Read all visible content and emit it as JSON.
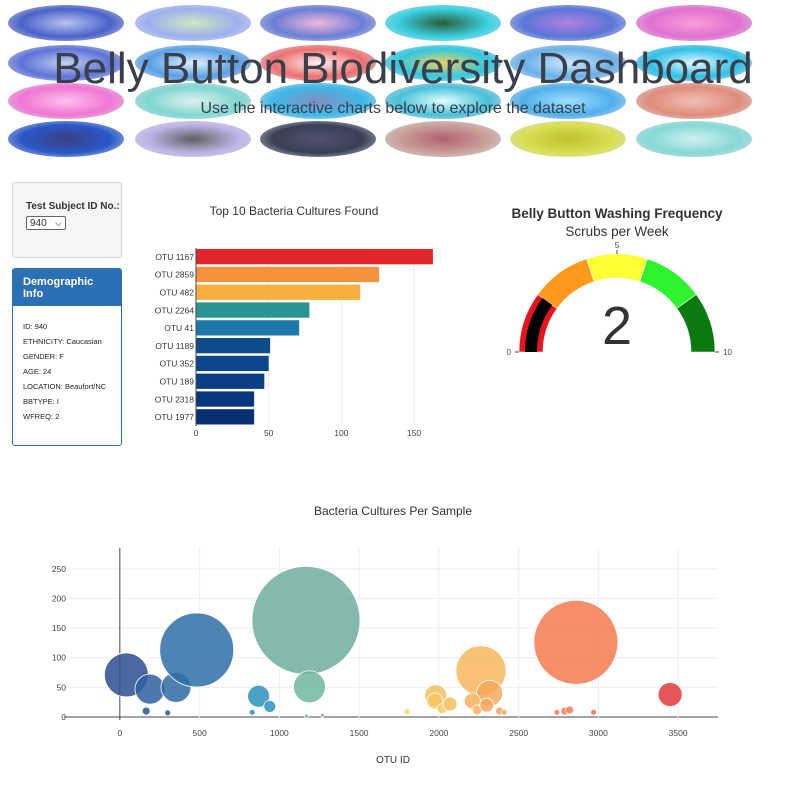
{
  "header": {
    "title": "Belly Button Biodiversity Dashboard",
    "subtitle": "Use the interactive charts below to explore the dataset"
  },
  "selector": {
    "label": "Test Subject ID No.:",
    "selected": "940"
  },
  "demographic": {
    "title": "Demographic Info",
    "rows": [
      "ID: 940",
      "ETHNICITY: Caucasian",
      "GENDER: F",
      "AGE: 24",
      "LOCATION: Beaufort/NC",
      "BBTYPE: I",
      "WFREQ: 2"
    ]
  },
  "chart_data": [
    {
      "type": "bar",
      "orientation": "horizontal",
      "title": "Top 10 Bacteria Cultures Found",
      "categories": [
        "OTU 1167",
        "OTU 2859",
        "OTU 482",
        "OTU 2264",
        "OTU 41",
        "OTU 1189",
        "OTU 352",
        "OTU 189",
        "OTU 2318",
        "OTU 1977"
      ],
      "values": [
        163,
        126,
        113,
        78,
        71,
        51,
        50,
        47,
        40,
        40
      ],
      "colors": [
        "#e3262b",
        "#f5923b",
        "#f6b040",
        "#2a9595",
        "#1d78a8",
        "#0d4b8a",
        "#0b458a",
        "#0a3f86",
        "#08377e",
        "#062f74"
      ],
      "xticks": [
        0,
        50,
        100,
        150
      ],
      "xlim": [
        0,
        172
      ]
    },
    {
      "type": "gauge",
      "title": "Belly Button Washing Frequency",
      "subtitle": "Scrubs per Week",
      "value": 2,
      "range": [
        0,
        10
      ],
      "tick_labels": [
        "0",
        "5",
        "10"
      ],
      "bands": [
        {
          "from": 0,
          "to": 2,
          "color": "#e8131c"
        },
        {
          "from": 2,
          "to": 4,
          "color": "#ff9a1f"
        },
        {
          "from": 4,
          "to": 6,
          "color": "#ffff33"
        },
        {
          "from": 6,
          "to": 8,
          "color": "#2ef22e"
        },
        {
          "from": 8,
          "to": 10,
          "color": "#0a7a10"
        }
      ],
      "bar_color": "#000000"
    },
    {
      "type": "scatter",
      "title": "Bacteria Cultures Per Sample",
      "xlabel": "OTU ID",
      "ylabel": "",
      "xlim": [
        -350,
        3750
      ],
      "ylim": [
        -5,
        285
      ],
      "xticks": [
        0,
        500,
        1000,
        1500,
        2000,
        2500,
        3000,
        3500
      ],
      "yticks": [
        0,
        50,
        100,
        150,
        200,
        250
      ],
      "points": [
        {
          "x": 41,
          "y": 71,
          "r": 22,
          "color": "#2c4e8f"
        },
        {
          "x": 189,
          "y": 47,
          "r": 15,
          "color": "#2f5f9f"
        },
        {
          "x": 352,
          "y": 50,
          "r": 15,
          "color": "#2f6aa5"
        },
        {
          "x": 482,
          "y": 113,
          "r": 37,
          "color": "#2f6fa7"
        },
        {
          "x": 1167,
          "y": 163,
          "r": 54,
          "color": "#6fae9d"
        },
        {
          "x": 1189,
          "y": 51,
          "r": 16,
          "color": "#6fb79c"
        },
        {
          "x": 870,
          "y": 35,
          "r": 11,
          "color": "#2a92c0"
        },
        {
          "x": 940,
          "y": 18,
          "r": 6,
          "color": "#2a92c0"
        },
        {
          "x": 165,
          "y": 10,
          "r": 4,
          "color": "#2c5590"
        },
        {
          "x": 300,
          "y": 7,
          "r": 3,
          "color": "#2c5590"
        },
        {
          "x": 830,
          "y": 8,
          "r": 3,
          "color": "#2a92c0"
        },
        {
          "x": 1980,
          "y": 36,
          "r": 11,
          "color": "#f2c060"
        },
        {
          "x": 1975,
          "y": 27,
          "r": 8,
          "color": "#f4c860"
        },
        {
          "x": 2020,
          "y": 14,
          "r": 5,
          "color": "#f4c860"
        },
        {
          "x": 2070,
          "y": 22,
          "r": 7,
          "color": "#f6bd5d"
        },
        {
          "x": 2264,
          "y": 78,
          "r": 25,
          "color": "#f6b75e"
        },
        {
          "x": 2318,
          "y": 40,
          "r": 13,
          "color": "#f6a85c"
        },
        {
          "x": 2210,
          "y": 27,
          "r": 8,
          "color": "#f6b05d"
        },
        {
          "x": 2240,
          "y": 12,
          "r": 5,
          "color": "#f6b05d"
        },
        {
          "x": 2300,
          "y": 20,
          "r": 7,
          "color": "#f6a85c"
        },
        {
          "x": 2380,
          "y": 10,
          "r": 4,
          "color": "#f6a05c"
        },
        {
          "x": 2410,
          "y": 8,
          "r": 3,
          "color": "#f6a05c"
        },
        {
          "x": 1800,
          "y": 9,
          "r": 3,
          "color": "#f2d060"
        },
        {
          "x": 2859,
          "y": 126,
          "r": 42,
          "color": "#f57a50"
        },
        {
          "x": 2740,
          "y": 8,
          "r": 3,
          "color": "#f57a50"
        },
        {
          "x": 2790,
          "y": 10,
          "r": 4,
          "color": "#f57a50"
        },
        {
          "x": 2820,
          "y": 12,
          "r": 4,
          "color": "#f57a50"
        },
        {
          "x": 2970,
          "y": 8,
          "r": 3,
          "color": "#f37050"
        },
        {
          "x": 3450,
          "y": 38,
          "r": 12,
          "color": "#e23a3a"
        },
        {
          "x": 1270,
          "y": 3,
          "r": 2,
          "color": "#6fb79c"
        },
        {
          "x": 1170,
          "y": 2,
          "r": 2,
          "color": "#6fb79c"
        }
      ]
    }
  ]
}
